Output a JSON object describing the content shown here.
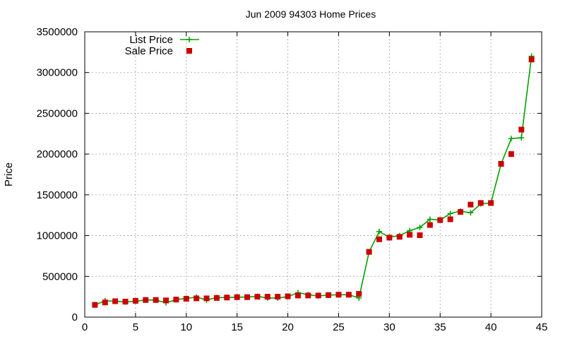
{
  "chart_data": {
    "type": "line",
    "title": "Jun 2009 94303 Home Prices",
    "xlabel": "",
    "ylabel": "Price",
    "xlim": [
      0,
      45
    ],
    "ylim": [
      0,
      3500000
    ],
    "x_ticks": [
      0,
      5,
      10,
      15,
      20,
      25,
      30,
      35,
      40,
      45
    ],
    "y_ticks": [
      0,
      500000,
      1000000,
      1500000,
      2000000,
      2500000,
      3000000,
      3500000
    ],
    "grid": true,
    "legend_position": "top-left",
    "x": [
      1,
      2,
      3,
      4,
      5,
      6,
      7,
      8,
      9,
      10,
      11,
      12,
      13,
      14,
      15,
      16,
      17,
      18,
      19,
      20,
      21,
      22,
      23,
      24,
      25,
      26,
      27,
      28,
      29,
      30,
      31,
      32,
      33,
      34,
      35,
      36,
      37,
      38,
      39,
      40,
      41,
      42,
      43,
      44
    ],
    "series": [
      {
        "name": "List Price",
        "style": "line-plus",
        "color": "#00a000",
        "values": [
          150000,
          200000,
          195000,
          185000,
          195000,
          210000,
          210000,
          175000,
          215000,
          230000,
          245000,
          210000,
          240000,
          240000,
          245000,
          245000,
          255000,
          235000,
          235000,
          250000,
          300000,
          275000,
          260000,
          270000,
          275000,
          275000,
          235000,
          800000,
          1050000,
          980000,
          1000000,
          1060000,
          1100000,
          1200000,
          1190000,
          1270000,
          1300000,
          1280000,
          1390000,
          1400000,
          1880000,
          2190000,
          2200000,
          3200000
        ]
      },
      {
        "name": "Sale Price",
        "style": "square-markers",
        "color": "#cc0000",
        "values": [
          150000,
          180000,
          195000,
          190000,
          200000,
          210000,
          210000,
          205000,
          215000,
          225000,
          230000,
          230000,
          235000,
          240000,
          245000,
          245000,
          250000,
          250000,
          250000,
          255000,
          265000,
          265000,
          265000,
          270000,
          275000,
          275000,
          285000,
          800000,
          955000,
          975000,
          985000,
          1010000,
          1005000,
          1130000,
          1190000,
          1200000,
          1290000,
          1380000,
          1400000,
          1400000,
          1880000,
          2000000,
          2300000,
          3160000
        ]
      }
    ]
  }
}
